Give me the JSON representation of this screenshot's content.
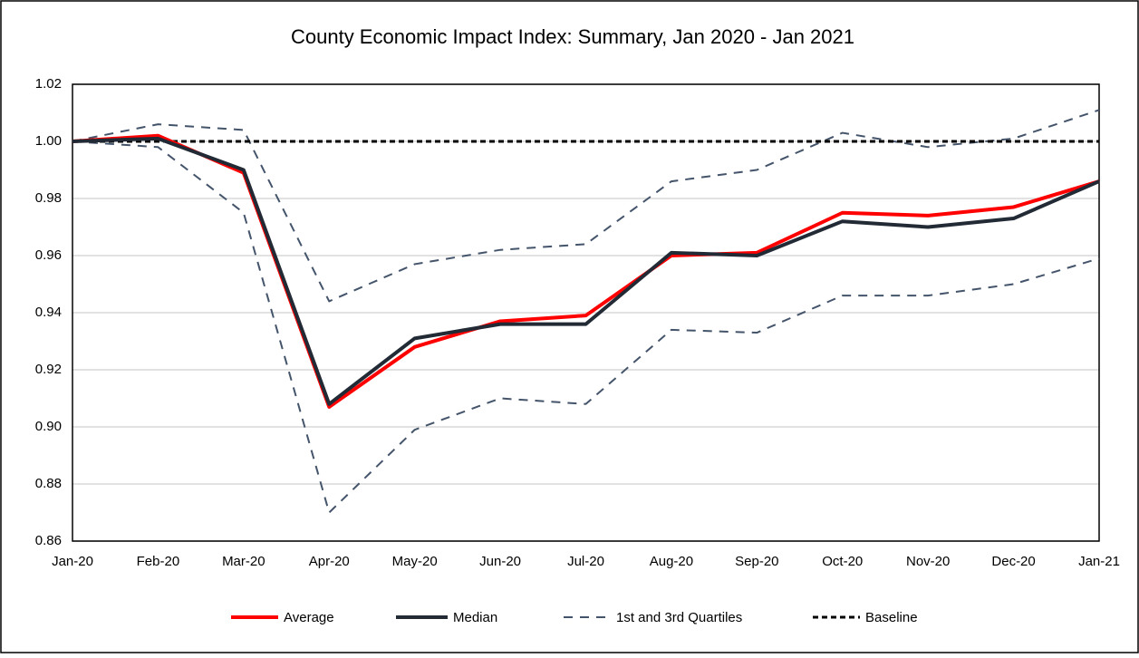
{
  "chart_data": {
    "type": "line",
    "title": "County Economic Impact Index: Summary, Jan 2020 - Jan 2021",
    "categories": [
      "Jan-20",
      "Feb-20",
      "Mar-20",
      "Apr-20",
      "May-20",
      "Jun-20",
      "Jul-20",
      "Aug-20",
      "Sep-20",
      "Oct-20",
      "Nov-20",
      "Dec-20",
      "Jan-21"
    ],
    "series": [
      {
        "name": "Average",
        "color": "#ff0000",
        "dash": false,
        "values": [
          1.0,
          1.002,
          0.989,
          0.907,
          0.928,
          0.937,
          0.939,
          0.96,
          0.961,
          0.975,
          0.974,
          0.977,
          0.986
        ]
      },
      {
        "name": "Median",
        "color": "#222a35",
        "dash": false,
        "values": [
          1.0,
          1.001,
          0.99,
          0.908,
          0.931,
          0.936,
          0.936,
          0.961,
          0.96,
          0.972,
          0.97,
          0.973,
          0.986
        ]
      },
      {
        "name": "1st and 3rd Quartiles",
        "color": "#44546a",
        "dash": true,
        "values": [
          1.0,
          0.998,
          0.975,
          0.87,
          0.899,
          0.91,
          0.908,
          0.934,
          0.933,
          0.946,
          0.946,
          0.95,
          0.959
        ],
        "upper_values": [
          1.0,
          1.006,
          1.004,
          0.944,
          0.957,
          0.962,
          0.964,
          0.986,
          0.99,
          1.003,
          0.998,
          1.001,
          1.011
        ]
      },
      {
        "name": "Baseline",
        "color": "#000000",
        "dash": true,
        "values": [
          1,
          1,
          1,
          1,
          1,
          1,
          1,
          1,
          1,
          1,
          1,
          1,
          1
        ]
      }
    ],
    "ylim": [
      0.86,
      1.02
    ],
    "yticks": [
      0.86,
      0.88,
      {
        "value": 0.9,
        "label": "0.90"
      },
      0.92,
      0.94,
      0.96,
      0.98,
      {
        "value": 1,
        "label": "1.00"
      },
      1.02
    ],
    "grid": true,
    "legend": "bottom"
  }
}
